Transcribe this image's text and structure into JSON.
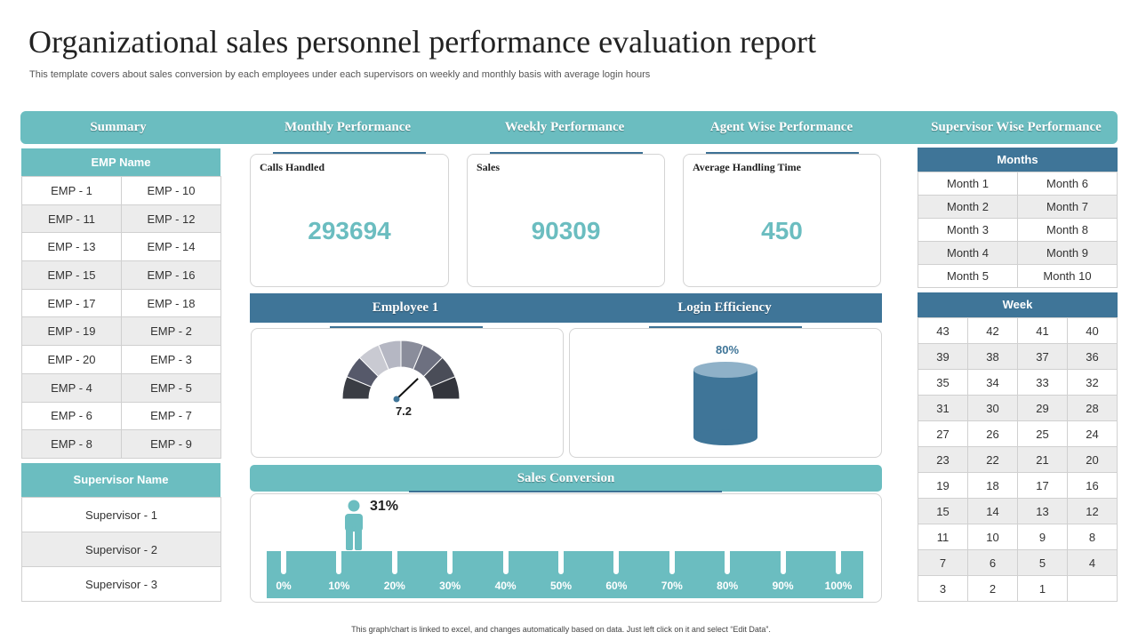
{
  "header": {
    "title": "Organizational sales personnel performance evaluation report",
    "subtitle": "This template covers about sales conversion by each employees under each supervisors on weekly and monthly basis with average login hours"
  },
  "nav": {
    "tabs": [
      "Summary",
      "Monthly Performance",
      "Weekly Performance",
      "Agent Wise Performance",
      "Supervisor Wise Performance"
    ]
  },
  "employees": {
    "header": "EMP Name",
    "rows": [
      [
        "EMP - 1",
        "EMP - 10"
      ],
      [
        "EMP - 11",
        "EMP - 12"
      ],
      [
        "EMP - 13",
        "EMP - 14"
      ],
      [
        "EMP - 15",
        "EMP - 16"
      ],
      [
        "EMP - 17",
        "EMP - 18"
      ],
      [
        "EMP - 19",
        "EMP - 2"
      ],
      [
        "EMP - 20",
        "EMP - 3"
      ],
      [
        "EMP - 4",
        "EMP - 5"
      ],
      [
        "EMP - 6",
        "EMP - 7"
      ],
      [
        "EMP - 8",
        "EMP - 9"
      ]
    ]
  },
  "supervisors": {
    "header": "Supervisor Name",
    "items": [
      "Supervisor  - 1",
      "Supervisor  - 2",
      "Supervisor  - 3"
    ]
  },
  "kpis": [
    {
      "label": "Calls Handled",
      "value": "293694"
    },
    {
      "label": "Sales",
      "value": "90309"
    },
    {
      "label": "Average  Handling  Time",
      "value": "450"
    }
  ],
  "employee_panel": {
    "title": "Employee  1",
    "gauge_value": "7.2",
    "gauge_level": 0.72
  },
  "login_panel": {
    "title": "Login Efficiency",
    "percent": "80%"
  },
  "sales_conversion": {
    "title": "Sales Conversion",
    "percent": "31%",
    "scale": [
      "0%",
      "10%",
      "20%",
      "30%",
      "40%",
      "50%",
      "60%",
      "70%",
      "80%",
      "90%",
      "100%"
    ]
  },
  "months": {
    "header": "Months",
    "rows": [
      [
        "Month 1",
        "Month 6"
      ],
      [
        "Month 2",
        "Month 7"
      ],
      [
        "Month 3",
        "Month 8"
      ],
      [
        "Month 4",
        "Month 9"
      ],
      [
        "Month 5",
        "Month 10"
      ]
    ]
  },
  "weeks": {
    "header": "Week",
    "rows": [
      [
        "43",
        "42",
        "41",
        "40"
      ],
      [
        "39",
        "38",
        "37",
        "36"
      ],
      [
        "35",
        "34",
        "33",
        "32"
      ],
      [
        "31",
        "30",
        "29",
        "28"
      ],
      [
        "27",
        "26",
        "25",
        "24"
      ],
      [
        "23",
        "22",
        "21",
        "20"
      ],
      [
        "19",
        "18",
        "17",
        "16"
      ],
      [
        "15",
        "14",
        "13",
        "12"
      ],
      [
        "11",
        "10",
        "9",
        "8"
      ],
      [
        "7",
        "6",
        "5",
        "4"
      ],
      [
        "3",
        "2",
        "1",
        ""
      ]
    ]
  },
  "footer": "This graph/chart is linked to excel, and changes automatically based on data. Just left click on it and select “Edit Data”.",
  "colors": {
    "teal": "#6bbdc0",
    "blue": "#3f7598"
  }
}
